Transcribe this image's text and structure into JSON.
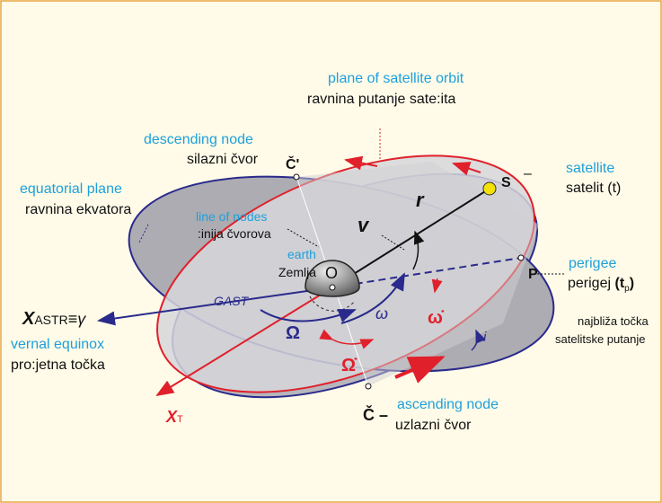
{
  "diagram": {
    "orbit_plane": {
      "en": "plane of  satellite orbit",
      "hr": "ravnina putanje sate:ita"
    },
    "descending_node": {
      "en": "descending node",
      "hr": "silazni čvor",
      "symbol": "Č'"
    },
    "satellite": {
      "symbol": "S",
      "dash": "–",
      "en": "satellite",
      "hr": "satelit (t)"
    },
    "equatorial_plane": {
      "en": "equatorial plane",
      "hr": "ravnina ekvatora"
    },
    "line_of_nodes": {
      "en": "line of nodes",
      "hr": ":inija čvorova"
    },
    "earth": {
      "en": "earth",
      "hr": "Zemlja",
      "center": "O"
    },
    "radius": "r",
    "true_anomaly": "v",
    "perigee": {
      "en": "perigee",
      "hr": "perigej",
      "open": "(t",
      "sub": "p",
      "close": ")",
      "symbol": "P"
    },
    "closest_point": {
      "line1": "najbliža točka",
      "line2": "satelitske putanje"
    },
    "vernal": {
      "symbol": "X",
      "sub": "ASTR",
      "rest": "≡γ",
      "en": "vernal equinox",
      "hr": "pro:jetna točka"
    },
    "gast": "GAST",
    "raan": "Ω",
    "raan_rate": "Ω̇",
    "argument_perigee": "ω",
    "argument_perigee_rate": "ω̇",
    "inclination": "i",
    "ascending_node": {
      "symbol": "Č –",
      "en": "ascending node",
      "hr": "uzlazni čvor"
    },
    "xt": {
      "symbol": "X",
      "sub": "T"
    }
  }
}
